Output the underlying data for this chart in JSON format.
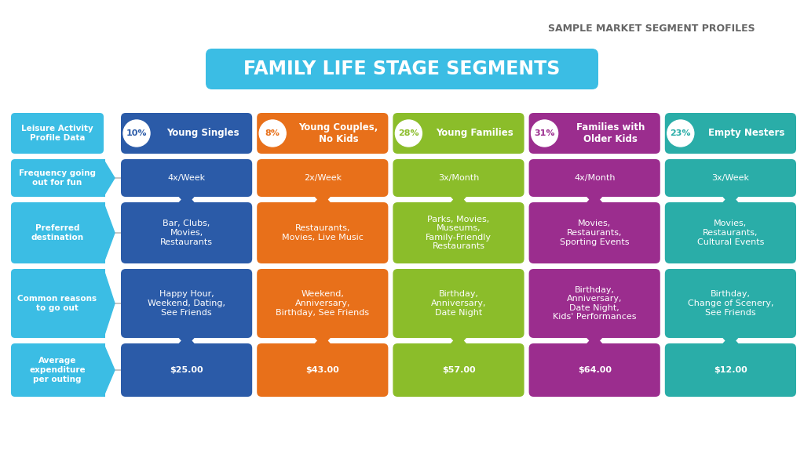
{
  "title_top": "SAMPLE MARKET SEGMENT PROFILES",
  "title_main": "FAMILY LIFE STAGE SEGMENTS",
  "title_main_bg": "#3BBDE4",
  "title_top_color": "#666666",
  "bg_color": "#ffffff",
  "left_col_color": "#3BBDE4",
  "left_col_labels": [
    "Leisure Activity\nProfile Data",
    "Frequency going\nout for fun",
    "Preferred\ndestination",
    "Common reasons\nto go out",
    "Average\nexpenditure\nper outing"
  ],
  "segments": [
    {
      "pct": "10%",
      "name": "Young Singles",
      "color": "#2B5BA8",
      "rows": [
        "4x/Week",
        "Bar, Clubs,\nMovies,\nRestaurants",
        "Happy Hour,\nWeekend, Dating,\nSee Friends",
        "$25.00"
      ]
    },
    {
      "pct": "8%",
      "name": "Young Couples,\nNo Kids",
      "color": "#E8701A",
      "rows": [
        "2x/Week",
        "Restaurants,\nMovies, Live Music",
        "Weekend,\nAnniversary,\nBirthday, See Friends",
        "$43.00"
      ]
    },
    {
      "pct": "28%",
      "name": "Young Families",
      "color": "#8BBD2A",
      "rows": [
        "3x/Month",
        "Parks, Movies,\nMuseums,\nFamily-Friendly\nRestaurants",
        "Birthday,\nAnniversary,\nDate Night",
        "$57.00"
      ]
    },
    {
      "pct": "31%",
      "name": "Families with\nOlder Kids",
      "color": "#9B2D8E",
      "rows": [
        "4x/Month",
        "Movies,\nRestaurants,\nSporting Events",
        "Birthday,\nAnniversary,\nDate Night,\nKids' Performances",
        "$64.00"
      ]
    },
    {
      "pct": "23%",
      "name": "Empty Nesters",
      "color": "#2AADA8",
      "rows": [
        "3x/Week",
        "Movies,\nRestaurants,\nCultural Events",
        "Birthday,\nChange of Scenery,\nSee Friends",
        "$12.00"
      ]
    }
  ],
  "fig_width": 10.24,
  "fig_height": 6.02,
  "dpi": 100
}
